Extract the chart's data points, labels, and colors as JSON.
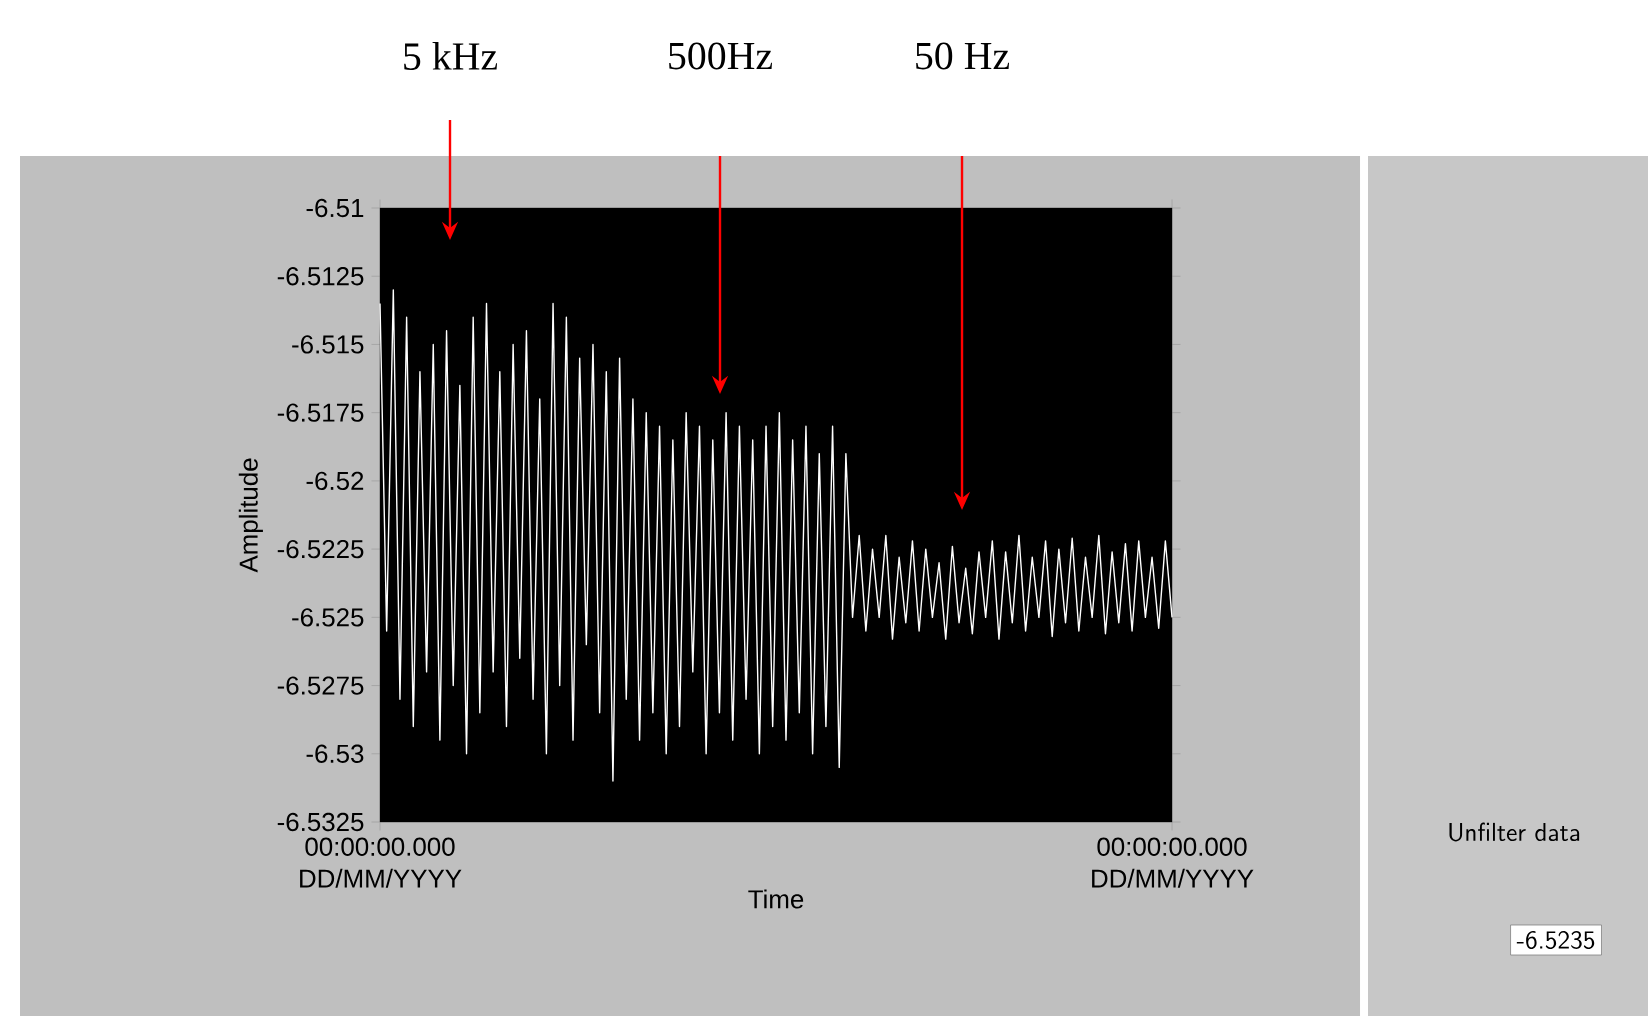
{
  "chart_data": {
    "type": "line",
    "xlabel": "Time",
    "ylabel": "Amplitude",
    "categories": [
      "00:00:00.000 DD/MM/YYYY",
      null,
      null,
      null,
      null,
      null,
      null,
      null,
      null,
      null,
      null,
      null,
      null,
      null,
      null,
      null,
      null,
      null,
      null,
      null,
      null,
      null,
      null,
      null,
      null,
      null,
      null,
      null,
      null,
      null,
      null,
      null,
      null,
      null,
      null,
      null,
      null,
      null,
      null,
      null,
      null,
      null,
      null,
      null,
      null,
      null,
      null,
      null,
      null,
      null,
      null,
      null,
      null,
      null,
      null,
      null,
      null,
      null,
      null,
      null,
      null,
      null,
      null,
      null,
      null,
      null,
      null,
      null,
      null,
      null,
      null,
      null,
      null,
      null,
      null,
      null,
      null,
      null,
      null,
      null,
      null,
      null,
      null,
      null,
      null,
      null,
      null,
      null,
      null,
      null,
      null,
      null,
      null,
      null,
      null,
      null,
      null,
      null,
      null,
      null,
      null,
      null,
      null,
      null,
      null,
      null,
      null,
      null,
      null,
      null,
      null,
      null,
      null,
      null,
      null,
      null,
      null,
      null,
      null,
      "00:00:00.000 DD/MM/YYYY"
    ],
    "ylim": [
      -6.5325,
      -6.51
    ],
    "yticks": [
      -6.51,
      -6.5125,
      -6.515,
      -6.5175,
      -6.52,
      -6.5225,
      -6.525,
      -6.5275,
      -6.53,
      -6.5325
    ],
    "marker": "none",
    "line_style": "solid",
    "series": [
      {
        "color": "#ffffff",
        "values": [
          -6.5135,
          -6.5255,
          -6.513,
          -6.528,
          -6.514,
          -6.529,
          -6.516,
          -6.527,
          -6.515,
          -6.5295,
          -6.5145,
          -6.5275,
          -6.5165,
          -6.53,
          -6.514,
          -6.5285,
          -6.5135,
          -6.527,
          -6.516,
          -6.529,
          -6.515,
          -6.5265,
          -6.5145,
          -6.528,
          -6.517,
          -6.53,
          -6.5135,
          -6.5275,
          -6.514,
          -6.5295,
          -6.5155,
          -6.526,
          -6.515,
          -6.5285,
          -6.516,
          -6.531,
          -6.5155,
          -6.528,
          -6.517,
          -6.5295,
          -6.5175,
          -6.5285,
          -6.518,
          -6.53,
          -6.5185,
          -6.529,
          -6.5175,
          -6.527,
          -6.518,
          -6.53,
          -6.5185,
          -6.5285,
          -6.5175,
          -6.5295,
          -6.518,
          -6.528,
          -6.5185,
          -6.53,
          -6.518,
          -6.529,
          -6.5175,
          -6.5295,
          -6.5185,
          -6.5285,
          -6.518,
          -6.53,
          -6.519,
          -6.529,
          -6.518,
          -6.5305,
          -6.519,
          -6.525,
          -6.522,
          -6.5255,
          -6.5225,
          -6.525,
          -6.522,
          -6.5258,
          -6.5228,
          -6.5252,
          -6.5222,
          -6.5255,
          -6.5225,
          -6.525,
          -6.523,
          -6.5258,
          -6.5224,
          -6.5252,
          -6.5232,
          -6.5256,
          -6.5226,
          -6.525,
          -6.5222,
          -6.5258,
          -6.5226,
          -6.5252,
          -6.522,
          -6.5255,
          -6.5228,
          -6.525,
          -6.5222,
          -6.5257,
          -6.5225,
          -6.5252,
          -6.5221,
          -6.5255,
          -6.5228,
          -6.525,
          -6.522,
          -6.5256,
          -6.5226,
          -6.5252,
          -6.5223,
          -6.5255,
          -6.5222,
          -6.525,
          -6.5228,
          -6.5254,
          -6.5222,
          -6.525
        ]
      }
    ],
    "annotations": [
      "5 kHz",
      "500Hz",
      "50 Hz",
      "Unfilter data",
      "-6.5235"
    ]
  }
}
